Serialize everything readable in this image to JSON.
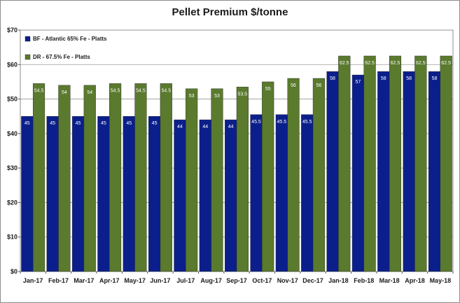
{
  "chart_data": {
    "type": "bar",
    "title": "Pellet Premium $/tonne",
    "xlabel": "",
    "ylabel": "",
    "ylim": [
      0,
      70
    ],
    "yticks": [
      0,
      10,
      20,
      30,
      40,
      50,
      60,
      70
    ],
    "ytick_labels": [
      "$0",
      "$10",
      "$20",
      "$30",
      "$40",
      "$50",
      "$60",
      "$70"
    ],
    "grid": true,
    "legend_position": "top-left",
    "categories": [
      "Jan-17",
      "Feb-17",
      "Mar-17",
      "Apr-17",
      "May-17",
      "Jun-17",
      "Jul-17",
      "Aug-17",
      "Sep-17",
      "Oct-17",
      "Nov-17",
      "Dec-17",
      "Jan-18",
      "Feb-18",
      "Mar-18",
      "Apr-18",
      "May-18"
    ],
    "series": [
      {
        "name": "BF - Atlantic 65% Fe - Platts",
        "color": "#0b1f8c",
        "values": [
          45,
          45,
          45,
          45,
          45,
          45,
          44,
          44,
          44,
          45.5,
          45.5,
          45.5,
          58,
          57,
          58,
          58,
          58
        ]
      },
      {
        "name": "DR - 67.5% Fe - Platts",
        "color": "#5a7a2e",
        "values": [
          54.5,
          54,
          54,
          54.5,
          54.5,
          54.5,
          53,
          53,
          53.5,
          55,
          56,
          56,
          62.5,
          62.5,
          62.5,
          62.5,
          62.5
        ]
      }
    ]
  }
}
